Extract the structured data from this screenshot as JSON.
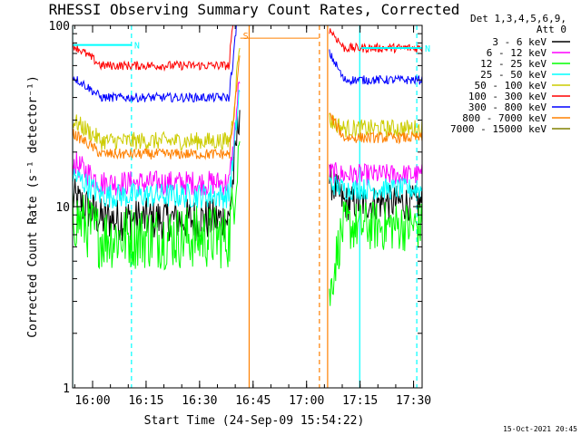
{
  "chart_data": {
    "type": "line",
    "title": "RHESSI Observing Summary Count Rates, Corrected",
    "xlabel": "Start Time (24-Sep-09 15:54:22)",
    "ylabel": "Corrected Count Rate (s⁻¹ detector⁻¹)",
    "yscale": "log",
    "ylim": [
      1,
      100
    ],
    "xlim_minutes": [
      0,
      98
    ],
    "x_ticks": [
      {
        "label": "16:00",
        "minute": 5.6
      },
      {
        "label": "16:15",
        "minute": 20.6
      },
      {
        "label": "16:30",
        "minute": 35.6
      },
      {
        "label": "16:45",
        "minute": 50.6
      },
      {
        "label": "17:00",
        "minute": 65.6
      },
      {
        "label": "17:15",
        "minute": 80.6
      },
      {
        "label": "17:30",
        "minute": 95.6
      }
    ],
    "y_ticks": [
      {
        "label": "1",
        "value": 1
      },
      {
        "label": "10",
        "value": 10
      },
      {
        "label": "100",
        "value": 100
      }
    ],
    "legend_header": [
      "Det 1,3,4,5,6,9,",
      "Att 0"
    ],
    "series": [
      {
        "name": "3 - 6 keV",
        "color": "#000000",
        "segments": [
          {
            "start": 0,
            "end": 47,
            "level": 8.5,
            "rise": 11,
            "noise": 0.12
          },
          {
            "start": 72,
            "end": 98,
            "level": 10.5,
            "drop": 14,
            "noise": 0.1
          }
        ]
      },
      {
        "name": "6 - 12 keV",
        "color": "#ff00ff",
        "segments": [
          {
            "start": 0,
            "end": 47,
            "level": 13.5,
            "rise": 16,
            "noise": 0.07
          },
          {
            "start": 72,
            "end": 98,
            "level": 15,
            "drop": 15.5,
            "noise": 0.06
          }
        ]
      },
      {
        "name": "12 - 25 keV",
        "color": "#00ff00",
        "segments": [
          {
            "start": 0,
            "end": 47,
            "level": 6.8,
            "rise": 8,
            "noise": 0.18
          },
          {
            "start": 72,
            "end": 98,
            "level": 7.8,
            "drop": 3,
            "noise": 0.14
          }
        ]
      },
      {
        "name": "25 - 50 keV",
        "color": "#00ffff",
        "segments": [
          {
            "start": 0,
            "end": 47,
            "level": 11.5,
            "rise": 14,
            "noise": 0.07
          },
          {
            "start": 72,
            "end": 98,
            "level": 12.5,
            "drop": 13.5,
            "noise": 0.06
          }
        ]
      },
      {
        "name": "50 - 100 keV",
        "color": "#cccc00",
        "segments": [
          {
            "start": 0,
            "end": 47,
            "level": 23,
            "rise": 25,
            "noise": 0.05
          },
          {
            "start": 72,
            "end": 98,
            "level": 27,
            "drop": 30,
            "noise": 0.05
          }
        ]
      },
      {
        "name": "100 - 300 keV",
        "color": "#ff0000",
        "segments": [
          {
            "start": 0,
            "end": 47,
            "level": 60,
            "rise": 78,
            "noise": 0.025
          },
          {
            "start": 72,
            "end": 98,
            "level": 75,
            "drop": 95,
            "noise": 0.025
          }
        ]
      },
      {
        "name": "300 - 800 keV",
        "color": "#0000ff",
        "segments": [
          {
            "start": 0,
            "end": 47,
            "level": 40,
            "rise": 50,
            "noise": 0.025
          },
          {
            "start": 72,
            "end": 98,
            "level": 50,
            "drop": 70,
            "noise": 0.025
          }
        ]
      },
      {
        "name": "800 - 7000 keV",
        "color": "#ff8000",
        "segments": [
          {
            "start": 0,
            "end": 47,
            "level": 19.5,
            "rise": 22,
            "noise": 0.03
          },
          {
            "start": 47,
            "end": 69,
            "level": 85,
            "noise": 0
          },
          {
            "start": 72,
            "end": 98,
            "level": 24,
            "drop": 32,
            "noise": 0.03
          }
        ]
      },
      {
        "name": "7000 - 15000 keV",
        "color": "#808000",
        "segments": []
      }
    ],
    "flags": [
      {
        "label": "N",
        "color": "#00ffff",
        "start_minute": 0,
        "end_minute": 16.5,
        "level": 78
      },
      {
        "label": "N",
        "color": "#00ffff",
        "start_minute": 81,
        "end_minute": 98,
        "level": 75
      },
      {
        "label": "S",
        "color": "#ff8000",
        "start_minute": 47,
        "end_minute": 47,
        "level": 88
      }
    ],
    "markers": [
      {
        "minute": 0,
        "color": "#00ffff",
        "style": "solid"
      },
      {
        "minute": 16.5,
        "color": "#00ffff",
        "style": "dashed"
      },
      {
        "minute": 49.5,
        "color": "#ff8000",
        "style": "solid"
      },
      {
        "minute": 69.2,
        "color": "#ff8000",
        "style": "dashed"
      },
      {
        "minute": 71.5,
        "color": "#ff8000",
        "style": "solid"
      },
      {
        "minute": 80.5,
        "color": "#00ffff",
        "style": "solid"
      },
      {
        "minute": 96.5,
        "color": "#00ffff",
        "style": "dashed"
      }
    ],
    "footer_date": "15-Oct-2021 20:45"
  }
}
